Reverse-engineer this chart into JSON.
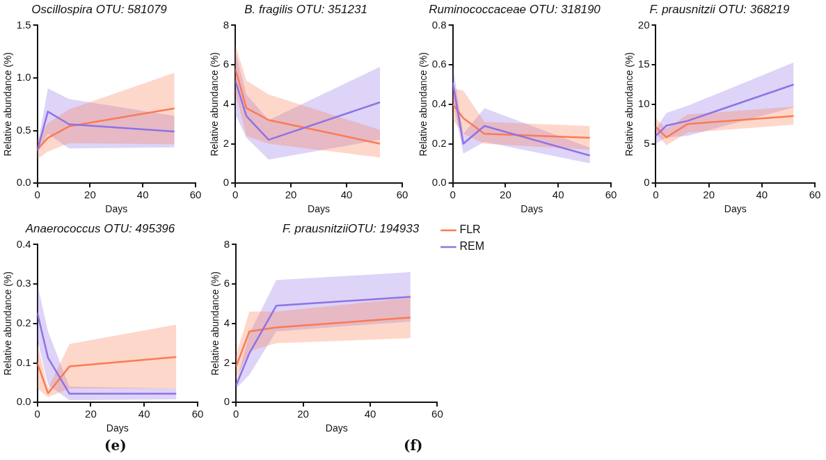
{
  "chart_data": [
    {
      "type": "line",
      "title": "Oscillospira OTU: 581079",
      "xlabel": "Days",
      "ylabel": "Relative abundance (%)",
      "x": [
        0,
        4,
        12,
        52
      ],
      "xlim": [
        0,
        60
      ],
      "xticks": [
        0,
        20,
        40,
        60
      ],
      "ylim": [
        0,
        1.5
      ],
      "yticks": [
        {
          "value": 0,
          "label": "0.0"
        },
        {
          "value": 0.5,
          "label": "0.5"
        },
        {
          "value": 1,
          "label": "1.0"
        },
        {
          "value": 1.5,
          "label": "1.5"
        }
      ],
      "grid": false,
      "legend": false,
      "marker": "none",
      "line_style": "solid",
      "series": [
        {
          "color": "#fb7a52",
          "values": [
            0.32,
            0.43,
            0.54,
            0.71
          ],
          "lower": [
            0.23,
            0.3,
            0.38,
            0.37
          ],
          "upper": [
            0.41,
            0.57,
            0.7,
            1.05
          ]
        },
        {
          "color": "#8e72e6",
          "values": [
            0.31,
            0.68,
            0.56,
            0.49
          ],
          "lower": [
            0.28,
            0.47,
            0.33,
            0.34
          ],
          "upper": [
            0.35,
            0.9,
            0.8,
            0.64
          ]
        }
      ]
    },
    {
      "type": "line",
      "title": "B. fragilis OTU: 351231",
      "xlabel": "Days",
      "ylabel": "Relative abundance (%)",
      "x": [
        0,
        4,
        12,
        52
      ],
      "xlim": [
        0,
        60
      ],
      "xticks": [
        0,
        20,
        40,
        60
      ],
      "ylim": [
        0,
        8
      ],
      "yticks": [
        0,
        2,
        4,
        6,
        8
      ],
      "grid": false,
      "legend": false,
      "marker": "none",
      "line_style": "solid",
      "series": [
        {
          "color": "#fb7a52",
          "values": [
            5.8,
            3.8,
            3.2,
            2.0
          ],
          "lower": [
            4.6,
            2.4,
            2.0,
            1.3
          ],
          "upper": [
            7.0,
            5.2,
            4.5,
            2.7
          ]
        },
        {
          "color": "#8e72e6",
          "values": [
            5.2,
            3.4,
            2.2,
            4.1
          ],
          "lower": [
            3.5,
            2.3,
            1.2,
            2.2
          ],
          "upper": [
            6.7,
            4.5,
            3.2,
            5.9
          ]
        }
      ]
    },
    {
      "type": "line",
      "title": "Ruminococcaceae OTU: 318190",
      "xlabel": "Days",
      "ylabel": "Relative abundance (%)",
      "x": [
        0,
        4,
        12,
        52
      ],
      "xlim": [
        0,
        60
      ],
      "xticks": [
        0,
        20,
        40,
        60
      ],
      "ylim": [
        0,
        0.8
      ],
      "yticks": [
        {
          "value": 0,
          "label": "0.0"
        },
        0.2,
        0.4,
        0.6,
        0.8
      ],
      "grid": false,
      "legend": false,
      "marker": "none",
      "line_style": "solid",
      "series": [
        {
          "color": "#fb7a52",
          "values": [
            0.4,
            0.33,
            0.25,
            0.23
          ],
          "lower": [
            0.32,
            0.25,
            0.2,
            0.17
          ],
          "upper": [
            0.48,
            0.47,
            0.31,
            0.29
          ]
        },
        {
          "color": "#8e72e6",
          "values": [
            0.51,
            0.2,
            0.29,
            0.14
          ],
          "lower": [
            0.42,
            0.15,
            0.21,
            0.1
          ],
          "upper": [
            0.6,
            0.25,
            0.38,
            0.18
          ]
        }
      ]
    },
    {
      "type": "line",
      "title": "F. prausnitzii OTU: 368219",
      "xlabel": "Days",
      "ylabel": "Relative abundance (%)",
      "x": [
        0,
        4,
        12,
        52
      ],
      "xlim": [
        0,
        60
      ],
      "xticks": [
        0,
        20,
        40,
        60
      ],
      "ylim": [
        0,
        20
      ],
      "yticks": [
        0,
        5,
        10,
        15,
        20
      ],
      "grid": false,
      "legend": false,
      "marker": "none",
      "line_style": "solid",
      "series": [
        {
          "color": "#fb7a52",
          "values": [
            7.1,
            5.8,
            7.5,
            8.5
          ],
          "lower": [
            6.3,
            4.8,
            6.4,
            7.4
          ],
          "upper": [
            8.2,
            6.9,
            8.7,
            9.7
          ]
        },
        {
          "color": "#8e72e6",
          "values": [
            6.0,
            7.3,
            7.9,
            12.5
          ],
          "lower": [
            5.0,
            5.8,
            6.0,
            9.6
          ],
          "upper": [
            6.9,
            8.9,
            9.8,
            15.3
          ]
        }
      ]
    },
    {
      "type": "line",
      "title": "Anaerococcus OTU: 495396",
      "xlabel": "Days",
      "ylabel": "Relative abundance (%)",
      "x": [
        0,
        4,
        12,
        52
      ],
      "xlim": [
        0,
        60
      ],
      "xticks": [
        0,
        20,
        40,
        60
      ],
      "ylim": [
        0,
        0.4
      ],
      "yticks": [
        {
          "value": 0,
          "label": "0.0"
        },
        0.1,
        0.2,
        0.3,
        0.4
      ],
      "grid": false,
      "legend": false,
      "marker": "none",
      "line_style": "solid",
      "annotations": [
        "(e)"
      ],
      "series": [
        {
          "color": "#fb7a52",
          "values": [
            0.1,
            0.023,
            0.091,
            0.115
          ],
          "lower": [
            0.035,
            0.013,
            0.035,
            0.035
          ],
          "upper": [
            0.15,
            0.035,
            0.148,
            0.197
          ]
        },
        {
          "color": "#8e72e6",
          "values": [
            0.227,
            0.113,
            0.022,
            0.022
          ],
          "lower": [
            0.16,
            0.045,
            0.005,
            0.008
          ],
          "upper": [
            0.3,
            0.18,
            0.04,
            0.035
          ]
        }
      ]
    },
    {
      "type": "line",
      "title": "F. prausnitziiOTU: 194933",
      "xlabel": "Days",
      "ylabel": "Relative abundance (%)",
      "x": [
        0,
        4,
        12,
        52
      ],
      "xlim": [
        0,
        60
      ],
      "xticks": [
        0,
        20,
        40,
        60
      ],
      "ylim": [
        0,
        8
      ],
      "yticks": [
        0,
        2,
        4,
        6,
        8
      ],
      "grid": false,
      "legend": "right",
      "marker": "none",
      "line_style": "solid",
      "annotations": [
        "(f)"
      ],
      "series": [
        {
          "name": "FLR",
          "color": "#fb7a52",
          "values": [
            1.8,
            3.6,
            3.8,
            4.3
          ],
          "lower": [
            1.2,
            2.6,
            3.0,
            3.25
          ],
          "upper": [
            2.4,
            4.6,
            4.6,
            5.3
          ]
        },
        {
          "name": "REM",
          "color": "#8e72e6",
          "values": [
            0.85,
            2.5,
            4.9,
            5.35
          ],
          "lower": [
            0.7,
            1.4,
            3.6,
            4.1
          ],
          "upper": [
            1.0,
            3.5,
            6.2,
            6.6
          ]
        }
      ]
    }
  ]
}
